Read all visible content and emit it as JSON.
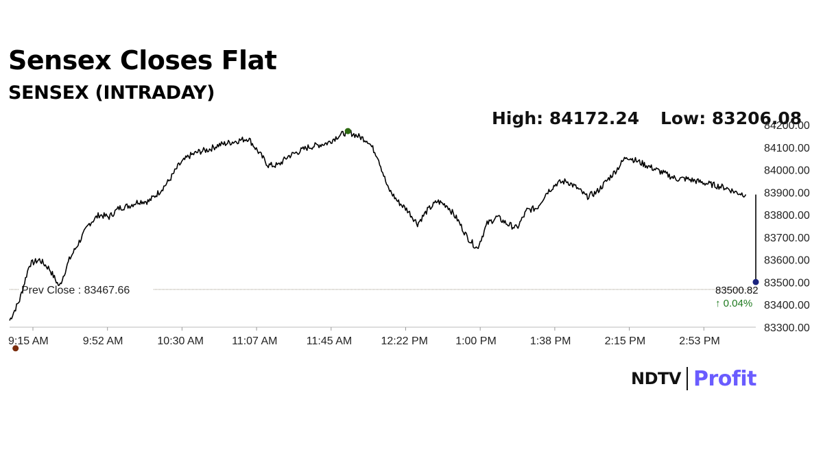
{
  "header": {
    "title": "Sensex Closes Flat",
    "subtitle": "SENSEX (INTRADAY)",
    "high_text": "High: 84172.24",
    "low_text": "Low: 83206.08"
  },
  "brand": {
    "ndtv": "NDTV",
    "profit": "Profit"
  },
  "colors": {
    "line": "#000000",
    "high_marker": "#2e6b12",
    "low_marker": "#7a2d0e",
    "last_marker": "#1a237e",
    "change_up": "#1f7a1f",
    "prev_close_line": "#9a9080"
  },
  "chart_data": {
    "type": "line",
    "ylim": [
      83300,
      84200
    ],
    "y_ticks": [
      "83300.00",
      "83400.00",
      "83500.00",
      "83600.00",
      "83700.00",
      "83800.00",
      "83900.00",
      "84000.00",
      "84100.00",
      "84200.00"
    ],
    "x_ticks": [
      "9:15 AM",
      "9:52 AM",
      "10:30 AM",
      "11:07 AM",
      "11:45 AM",
      "12:22 PM",
      "1:00 PM",
      "1:38 PM",
      "2:15 PM",
      "2:53 PM"
    ],
    "prev_close": {
      "label": "Prev Close : 83467.66",
      "value": 83467.66
    },
    "last": {
      "value_text": "83500.82",
      "change_text": "0.04%",
      "value": 83500.82
    },
    "high": 84172.24,
    "low": 83206.08,
    "series": [
      {
        "x": [
          0,
          5,
          10,
          15,
          20,
          25,
          30,
          35,
          40,
          45,
          50,
          55,
          60,
          65,
          70,
          75,
          80,
          85,
          90,
          95,
          100,
          105,
          110,
          115,
          120,
          125,
          130,
          135,
          140,
          145,
          150,
          155,
          160,
          165,
          170,
          175,
          180,
          185,
          190,
          195,
          200,
          205,
          210,
          215,
          220,
          225,
          230,
          235,
          240,
          245,
          250,
          255,
          260,
          265,
          270,
          275,
          280,
          285,
          290,
          295,
          300,
          305,
          310,
          315,
          320,
          325,
          330,
          335,
          340,
          345,
          350,
          355,
          360,
          365,
          370,
          375
        ],
        "values": [
          83330,
          83420,
          83580,
          83600,
          83560,
          83480,
          83600,
          83680,
          83760,
          83800,
          83790,
          83830,
          83840,
          83860,
          83860,
          83900,
          83950,
          84020,
          84060,
          84080,
          84090,
          84110,
          84120,
          84130,
          84140,
          84080,
          84020,
          84020,
          84060,
          84080,
          84100,
          84110,
          84120,
          84150,
          84170,
          84150,
          84130,
          84060,
          83920,
          83860,
          83820,
          83760,
          83820,
          83860,
          83840,
          83780,
          83700,
          83650,
          83760,
          83790,
          83760,
          83740,
          83820,
          83830,
          83900,
          83940,
          83950,
          83920,
          83880,
          83900,
          83950,
          84000,
          84060,
          84040,
          84020,
          84000,
          83980,
          83960,
          83960,
          83950,
          83940,
          83930,
          83920,
          83900,
          83890,
          83500.82
        ]
      }
    ]
  }
}
